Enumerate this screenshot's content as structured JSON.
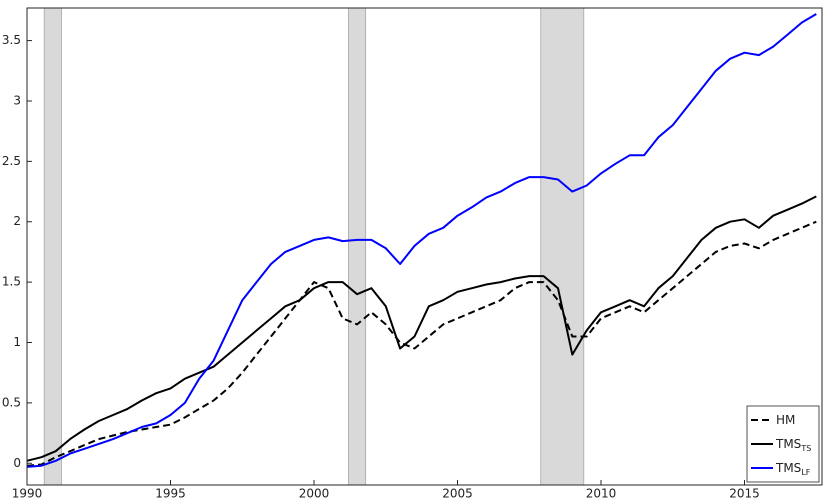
{
  "chart_data": {
    "type": "line",
    "x": [
      1990,
      1990.5,
      1991,
      1991.5,
      1992,
      1992.5,
      1993,
      1993.5,
      1994,
      1994.5,
      1995,
      1995.5,
      1996,
      1996.5,
      1997,
      1997.5,
      1998,
      1998.5,
      1999,
      1999.5,
      2000,
      2000.5,
      2001,
      2001.5,
      2002,
      2002.5,
      2003,
      2003.5,
      2004,
      2004.5,
      2005,
      2005.5,
      2006,
      2006.5,
      2007,
      2007.5,
      2008,
      2008.5,
      2009,
      2009.5,
      2010,
      2010.5,
      2011,
      2011.5,
      2012,
      2012.5,
      2013,
      2013.5,
      2014,
      2014.5,
      2015,
      2015.5,
      2016,
      2016.5,
      2017,
      2017.5
    ],
    "series": [
      {
        "name": "HM",
        "color": "#000000",
        "dash": true,
        "values": [
          -0.02,
          -0.01,
          0.05,
          0.1,
          0.15,
          0.2,
          0.23,
          0.26,
          0.28,
          0.3,
          0.32,
          0.38,
          0.45,
          0.52,
          0.62,
          0.75,
          0.9,
          1.05,
          1.2,
          1.35,
          1.5,
          1.45,
          1.2,
          1.15,
          1.25,
          1.15,
          1.0,
          0.95,
          1.05,
          1.15,
          1.2,
          1.25,
          1.3,
          1.35,
          1.45,
          1.5,
          1.5,
          1.35,
          1.05,
          1.05,
          1.2,
          1.25,
          1.3,
          1.25,
          1.35,
          1.45,
          1.55,
          1.65,
          1.75,
          1.8,
          1.82,
          1.78,
          1.85,
          1.9,
          1.95,
          2.0
        ]
      },
      {
        "name": "TMS",
        "subscript": "TS",
        "color": "#000000",
        "dash": false,
        "values": [
          0.02,
          0.05,
          0.1,
          0.2,
          0.28,
          0.35,
          0.4,
          0.45,
          0.52,
          0.58,
          0.62,
          0.7,
          0.75,
          0.8,
          0.9,
          1.0,
          1.1,
          1.2,
          1.3,
          1.35,
          1.45,
          1.5,
          1.5,
          1.4,
          1.45,
          1.3,
          0.95,
          1.05,
          1.3,
          1.35,
          1.42,
          1.45,
          1.48,
          1.5,
          1.53,
          1.55,
          1.55,
          1.45,
          0.9,
          1.1,
          1.25,
          1.3,
          1.35,
          1.3,
          1.45,
          1.55,
          1.7,
          1.85,
          1.95,
          2.0,
          2.02,
          1.95,
          2.05,
          2.1,
          2.15,
          2.21
        ]
      },
      {
        "name": "TMS",
        "subscript": "LF",
        "color": "#0000ff",
        "dash": false,
        "values": [
          -0.03,
          -0.02,
          0.02,
          0.08,
          0.12,
          0.16,
          0.2,
          0.25,
          0.3,
          0.33,
          0.4,
          0.5,
          0.7,
          0.85,
          1.1,
          1.35,
          1.5,
          1.65,
          1.75,
          1.8,
          1.85,
          1.87,
          1.84,
          1.85,
          1.85,
          1.78,
          1.65,
          1.8,
          1.9,
          1.95,
          2.05,
          2.12,
          2.2,
          2.25,
          2.32,
          2.37,
          2.37,
          2.35,
          2.25,
          2.3,
          2.4,
          2.48,
          2.55,
          2.55,
          2.7,
          2.8,
          2.95,
          3.1,
          3.25,
          3.35,
          3.4,
          3.38,
          3.45,
          3.55,
          3.65,
          3.72
        ]
      }
    ],
    "shaded": [
      [
        1990.6,
        1991.2
      ],
      [
        2001.2,
        2001.8
      ],
      [
        2007.9,
        2009.4
      ]
    ],
    "shade_color": "#d9d9d9",
    "xlim": [
      1990,
      2017.7
    ],
    "xticks": [
      1990,
      1995,
      2000,
      2005,
      2010,
      2015
    ],
    "ylim": [
      -0.18,
      3.77
    ],
    "yticks": [
      0,
      0.5,
      1,
      1.5,
      2,
      2.5,
      3,
      3.5
    ],
    "grid": false,
    "legend": "lower right"
  }
}
